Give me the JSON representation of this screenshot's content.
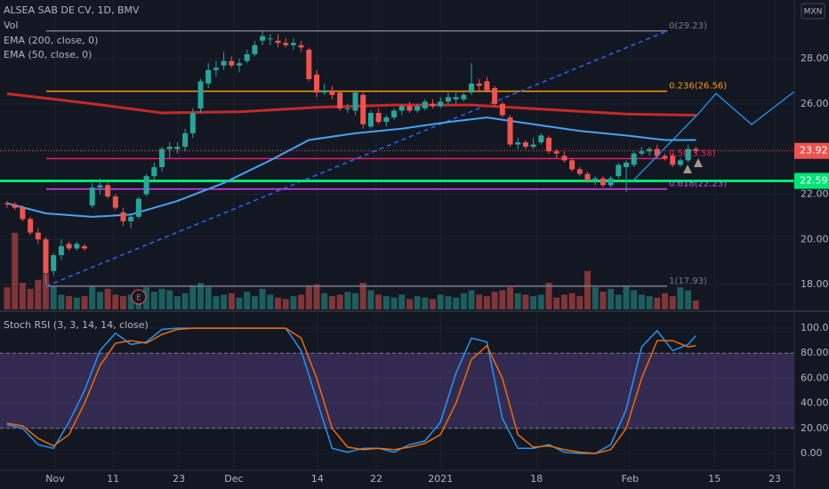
{
  "chart_data": [
    {
      "type": "candlestick",
      "title": "ALSEA SAB DE CV, 1D, BMV",
      "currency": "MXN",
      "up_color": "#26a69a",
      "down_color": "#ef5350",
      "grid": true,
      "xlim": [
        -0.92,
        101.72
      ],
      "ylim": [
        16.9,
        30.6
      ],
      "yticks": [
        {
          "value": 18,
          "label": "18.00"
        },
        {
          "value": 20,
          "label": "20.00"
        },
        {
          "value": 22,
          "label": "22.00"
        },
        {
          "value": 24,
          "label": "24.00"
        },
        {
          "value": 26,
          "label": "26.00"
        },
        {
          "value": 28,
          "label": "28.00"
        }
      ],
      "x": [
        0,
        1,
        2,
        3,
        4,
        5,
        6,
        7,
        8,
        9,
        10,
        11,
        12,
        13,
        14,
        15,
        16,
        17,
        18,
        19,
        20,
        21,
        22,
        23,
        24,
        25,
        26,
        27,
        28,
        29,
        30,
        31,
        32,
        33,
        34,
        35,
        36,
        37,
        38,
        39,
        40,
        41,
        42,
        43,
        44,
        45,
        46,
        47,
        48,
        49,
        50,
        51,
        52,
        53,
        54,
        55,
        56,
        57,
        58,
        59,
        60,
        61,
        62,
        63,
        64,
        65,
        66,
        67,
        68,
        69,
        70,
        71,
        72,
        73,
        74,
        75,
        76,
        77,
        78,
        79,
        80,
        81,
        82,
        83,
        84,
        85,
        86,
        87,
        88,
        89
      ],
      "open": [
        21.6,
        21.55,
        21.4,
        20.9,
        20.3,
        20.0,
        18.6,
        19.3,
        19.8,
        19.6,
        19.7,
        21.5,
        22.3,
        22.4,
        21.9,
        21.2,
        20.8,
        21.0,
        22.0,
        22.8,
        23.2,
        24.0,
        24.0,
        24.1,
        24.7,
        25.8,
        26.9,
        27.5,
        27.7,
        27.9,
        27.7,
        27.9,
        28.2,
        28.8,
        28.9,
        28.8,
        28.7,
        28.6,
        28.6,
        28.4,
        27.3,
        26.5,
        26.6,
        26.5,
        25.8,
        25.7,
        26.4,
        25.0,
        25.6,
        25.2,
        25.4,
        25.7,
        25.9,
        25.7,
        25.8,
        26.0,
        25.9,
        26.1,
        26.2,
        26.2,
        26.5,
        26.9,
        27.0,
        26.7,
        26.0,
        25.4,
        24.2,
        24.3,
        24.1,
        24.3,
        24.5,
        23.9,
        23.7,
        23.5,
        23.1,
        22.9,
        22.6,
        22.7,
        22.4,
        22.8,
        23.2,
        23.3,
        23.8,
        23.9,
        24.0,
        23.7,
        23.7,
        23.3,
        23.5,
        24.0
      ],
      "high": [
        21.7,
        21.65,
        21.5,
        21.0,
        20.5,
        20.1,
        19.4,
        20.0,
        19.9,
        19.9,
        19.8,
        22.5,
        22.7,
        22.5,
        22.0,
        21.4,
        21.1,
        21.9,
        22.9,
        23.4,
        24.1,
        24.3,
        24.3,
        24.9,
        25.8,
        27.1,
        27.8,
        27.9,
        28.3,
        28.1,
        28.0,
        28.4,
        28.8,
        29.2,
        29.1,
        29.1,
        28.9,
        28.9,
        28.8,
        28.5,
        27.5,
        26.9,
        26.8,
        26.6,
        26.0,
        26.6,
        26.5,
        25.7,
        25.8,
        25.5,
        25.8,
        26.0,
        26.1,
        26.0,
        26.2,
        26.2,
        26.3,
        26.5,
        26.5,
        26.5,
        27.8,
        27.1,
        27.2,
        26.8,
        26.1,
        25.5,
        24.5,
        24.4,
        24.5,
        24.7,
        24.6,
        24.0,
        23.9,
        23.6,
        23.2,
        23.0,
        22.8,
        22.8,
        22.8,
        23.4,
        23.5,
        23.9,
        24.1,
        24.1,
        24.2,
        23.8,
        23.8,
        23.6,
        24.2,
        24.1
      ],
      "low": [
        21.4,
        21.3,
        20.8,
        20.2,
        19.8,
        18.0,
        18.4,
        19.1,
        19.5,
        19.5,
        19.5,
        21.4,
        22.0,
        21.8,
        21.3,
        20.6,
        20.5,
        20.9,
        21.9,
        22.6,
        23.0,
        23.6,
        23.8,
        23.9,
        24.5,
        25.6,
        26.7,
        27.2,
        27.5,
        27.6,
        27.4,
        27.8,
        28.1,
        28.6,
        28.6,
        28.5,
        28.5,
        28.4,
        28.3,
        27.0,
        26.3,
        26.4,
        26.2,
        25.7,
        25.6,
        25.5,
        24.9,
        24.9,
        25.1,
        25.0,
        25.3,
        25.5,
        25.6,
        25.6,
        25.7,
        25.8,
        25.8,
        26.0,
        26.0,
        26.1,
        26.4,
        26.6,
        26.5,
        25.9,
        25.4,
        24.1,
        24.0,
        24.0,
        24.0,
        24.2,
        23.8,
        23.6,
        23.4,
        23.0,
        22.8,
        22.5,
        22.4,
        22.3,
        22.3,
        22.7,
        22.1,
        23.2,
        23.7,
        23.7,
        23.6,
        23.5,
        23.2,
        23.2,
        23.4,
        23.8
      ],
      "close": [
        21.55,
        21.4,
        20.9,
        20.3,
        20.0,
        18.5,
        19.3,
        19.7,
        19.6,
        19.8,
        19.6,
        22.3,
        22.4,
        21.9,
        21.4,
        20.8,
        21.0,
        21.8,
        22.8,
        23.2,
        24.0,
        24.1,
        24.1,
        24.7,
        25.6,
        27.0,
        27.5,
        27.6,
        27.9,
        27.7,
        27.8,
        28.2,
        28.6,
        29.0,
        28.9,
        28.7,
        28.6,
        28.7,
        28.5,
        27.1,
        26.5,
        26.6,
        26.4,
        25.8,
        25.8,
        26.5,
        25.1,
        25.6,
        25.2,
        25.4,
        25.7,
        25.9,
        25.7,
        25.9,
        26.1,
        25.9,
        26.1,
        26.3,
        26.3,
        26.4,
        26.9,
        26.8,
        26.6,
        26.0,
        25.5,
        24.2,
        24.3,
        24.1,
        24.2,
        24.6,
        23.9,
        23.8,
        23.5,
        23.1,
        22.9,
        22.6,
        22.7,
        22.4,
        22.7,
        23.3,
        23.4,
        23.8,
        23.9,
        24.0,
        23.7,
        23.6,
        23.3,
        23.5,
        24.0,
        23.92
      ],
      "volume": {
        "name": "Vol",
        "ylim": [
          0,
          21
        ],
        "values": [
          1.5,
          5.2,
          1.8,
          1.4,
          2.0,
          2.4,
          1.6,
          1.0,
          0.9,
          0.8,
          0.9,
          1.6,
          1.2,
          1.4,
          1.0,
          0.9,
          1.0,
          1.3,
          1.5,
          1.2,
          1.4,
          1.3,
          0.9,
          1.1,
          1.6,
          1.8,
          1.5,
          0.9,
          1.0,
          1.1,
          0.8,
          1.2,
          0.9,
          1.4,
          1.0,
          0.8,
          0.7,
          0.9,
          1.0,
          1.6,
          1.7,
          1.1,
          0.9,
          1.0,
          1.2,
          1.1,
          1.8,
          1.3,
          1.0,
          0.9,
          0.8,
          1.0,
          0.7,
          0.9,
          0.8,
          0.7,
          1.0,
          0.9,
          0.8,
          1.1,
          1.3,
          1.0,
          0.9,
          1.2,
          1.3,
          1.5,
          1.1,
          1.0,
          0.9,
          1.0,
          1.8,
          0.8,
          1.0,
          1.1,
          0.9,
          2.6,
          1.5,
          1.2,
          1.4,
          1.0,
          1.6,
          1.3,
          1.0,
          0.9,
          0.8,
          1.1,
          0.9,
          1.5,
          1.3,
          0.6
        ]
      },
      "series": [
        {
          "name": "EMA (200, close, 0)",
          "color": "#c62828",
          "x": [
            0,
            10,
            20,
            30,
            40,
            50,
            60,
            70,
            80,
            89
          ],
          "values": [
            26.45,
            26.05,
            25.6,
            25.65,
            25.85,
            25.95,
            25.95,
            25.75,
            25.55,
            25.5
          ]
        },
        {
          "name": "EMA (50, close, 0)",
          "color": "#42a5f5",
          "x": [
            0,
            5,
            11,
            16,
            22,
            28,
            34,
            39,
            45,
            51,
            57,
            62,
            68,
            74,
            80,
            85,
            89
          ],
          "values": [
            21.6,
            21.15,
            21.0,
            21.1,
            21.7,
            22.5,
            23.5,
            24.4,
            24.7,
            24.9,
            25.2,
            25.4,
            25.1,
            24.8,
            24.6,
            24.4,
            24.4
          ]
        }
      ],
      "fib": {
        "x": [
          5.06,
          85.3
        ],
        "levels": [
          {
            "value": 29.23,
            "label": "0(29.23)",
            "color": "#787b86"
          },
          {
            "value": 26.56,
            "label": "0.236(26.56)",
            "color": "#ff9800"
          },
          {
            "value": 23.58,
            "label": "0.5(23.58)",
            "color": "#e91e63"
          },
          {
            "value": 22.23,
            "label": "0.618(22.23)",
            "color": "#e040fb"
          },
          {
            "value": 17.93,
            "label": "1(17.93)",
            "color": "#787b86"
          }
        ]
      },
      "trend_lines": [
        {
          "color": "#2196f3",
          "x": [
            80.9,
            89.3,
            91.6,
            96.2,
            101.7
          ],
          "values": [
            22.6,
            25.56,
            26.46,
            25.09,
            26.54
          ]
        }
      ],
      "hline": {
        "value": 22.59,
        "color": "#00e676"
      },
      "earnings_marker": {
        "x": 17,
        "label": "E"
      }
    },
    {
      "type": "line",
      "title": "Stoch RSI (3, 3, 14, 14, close)",
      "grid": true,
      "xlim": [
        -0.92,
        101.72
      ],
      "ylim": [
        -12.8,
        112.1
      ],
      "yticks": [
        {
          "value": 0,
          "label": "0.00"
        },
        {
          "value": 20,
          "label": "20.00"
        },
        {
          "value": 40,
          "label": "40.00"
        },
        {
          "value": 60,
          "label": "60.00"
        },
        {
          "value": 80,
          "label": "80.00"
        },
        {
          "value": 100,
          "label": "100.00"
        }
      ],
      "xticks": [
        {
          "value": 6.2,
          "label": "Nov"
        },
        {
          "value": 13.7,
          "label": "11"
        },
        {
          "value": 22.2,
          "label": "23"
        },
        {
          "value": 29.3,
          "label": "Dec"
        },
        {
          "value": 40.1,
          "label": "14"
        },
        {
          "value": 47.7,
          "label": "22"
        },
        {
          "value": 56.0,
          "label": "2021"
        },
        {
          "value": 68.4,
          "label": "18"
        },
        {
          "value": 80.5,
          "label": "Feb"
        },
        {
          "value": 91.4,
          "label": "15"
        },
        {
          "value": 99.2,
          "label": "23"
        }
      ],
      "band": [
        20,
        80
      ],
      "band_color": "#7e57c2",
      "series": [
        {
          "color": "#2196f3",
          "x": [
            0,
            2,
            4,
            6,
            8,
            10,
            12,
            14,
            16,
            18,
            20,
            22,
            24,
            26,
            28,
            30,
            32,
            34,
            36,
            38,
            40,
            42,
            44,
            46,
            48,
            50,
            52,
            54,
            56,
            58,
            60,
            62,
            64,
            66,
            68,
            70,
            72,
            74,
            76,
            78,
            80,
            82,
            84,
            86,
            88,
            89
          ],
          "values": [
            23,
            20,
            7,
            4,
            25,
            50,
            82,
            96,
            87,
            89,
            99,
            100,
            100,
            100,
            100,
            100,
            100,
            100,
            100,
            82,
            43,
            4,
            1,
            4,
            4,
            1,
            7,
            10,
            25,
            64,
            92,
            89,
            28,
            4,
            4,
            7,
            1,
            0,
            0,
            7,
            35,
            85,
            98,
            82,
            87,
            94
          ]
        },
        {
          "color": "#ef6c00",
          "x": [
            0,
            2,
            4,
            6,
            8,
            10,
            12,
            14,
            16,
            18,
            20,
            22,
            24,
            26,
            28,
            30,
            32,
            34,
            36,
            38,
            40,
            42,
            44,
            46,
            48,
            50,
            52,
            54,
            56,
            58,
            60,
            62,
            64,
            66,
            68,
            70,
            72,
            74,
            76,
            78,
            80,
            82,
            84,
            86,
            88,
            89
          ],
          "values": [
            24,
            22,
            12,
            6,
            15,
            40,
            70,
            88,
            90,
            88,
            95,
            99,
            100,
            100,
            100,
            100,
            100,
            100,
            100,
            92,
            60,
            20,
            5,
            3,
            4,
            3,
            5,
            8,
            15,
            40,
            75,
            86,
            60,
            15,
            5,
            6,
            3,
            1,
            0,
            3,
            20,
            60,
            90,
            90,
            85,
            86
          ]
        }
      ]
    }
  ]
}
